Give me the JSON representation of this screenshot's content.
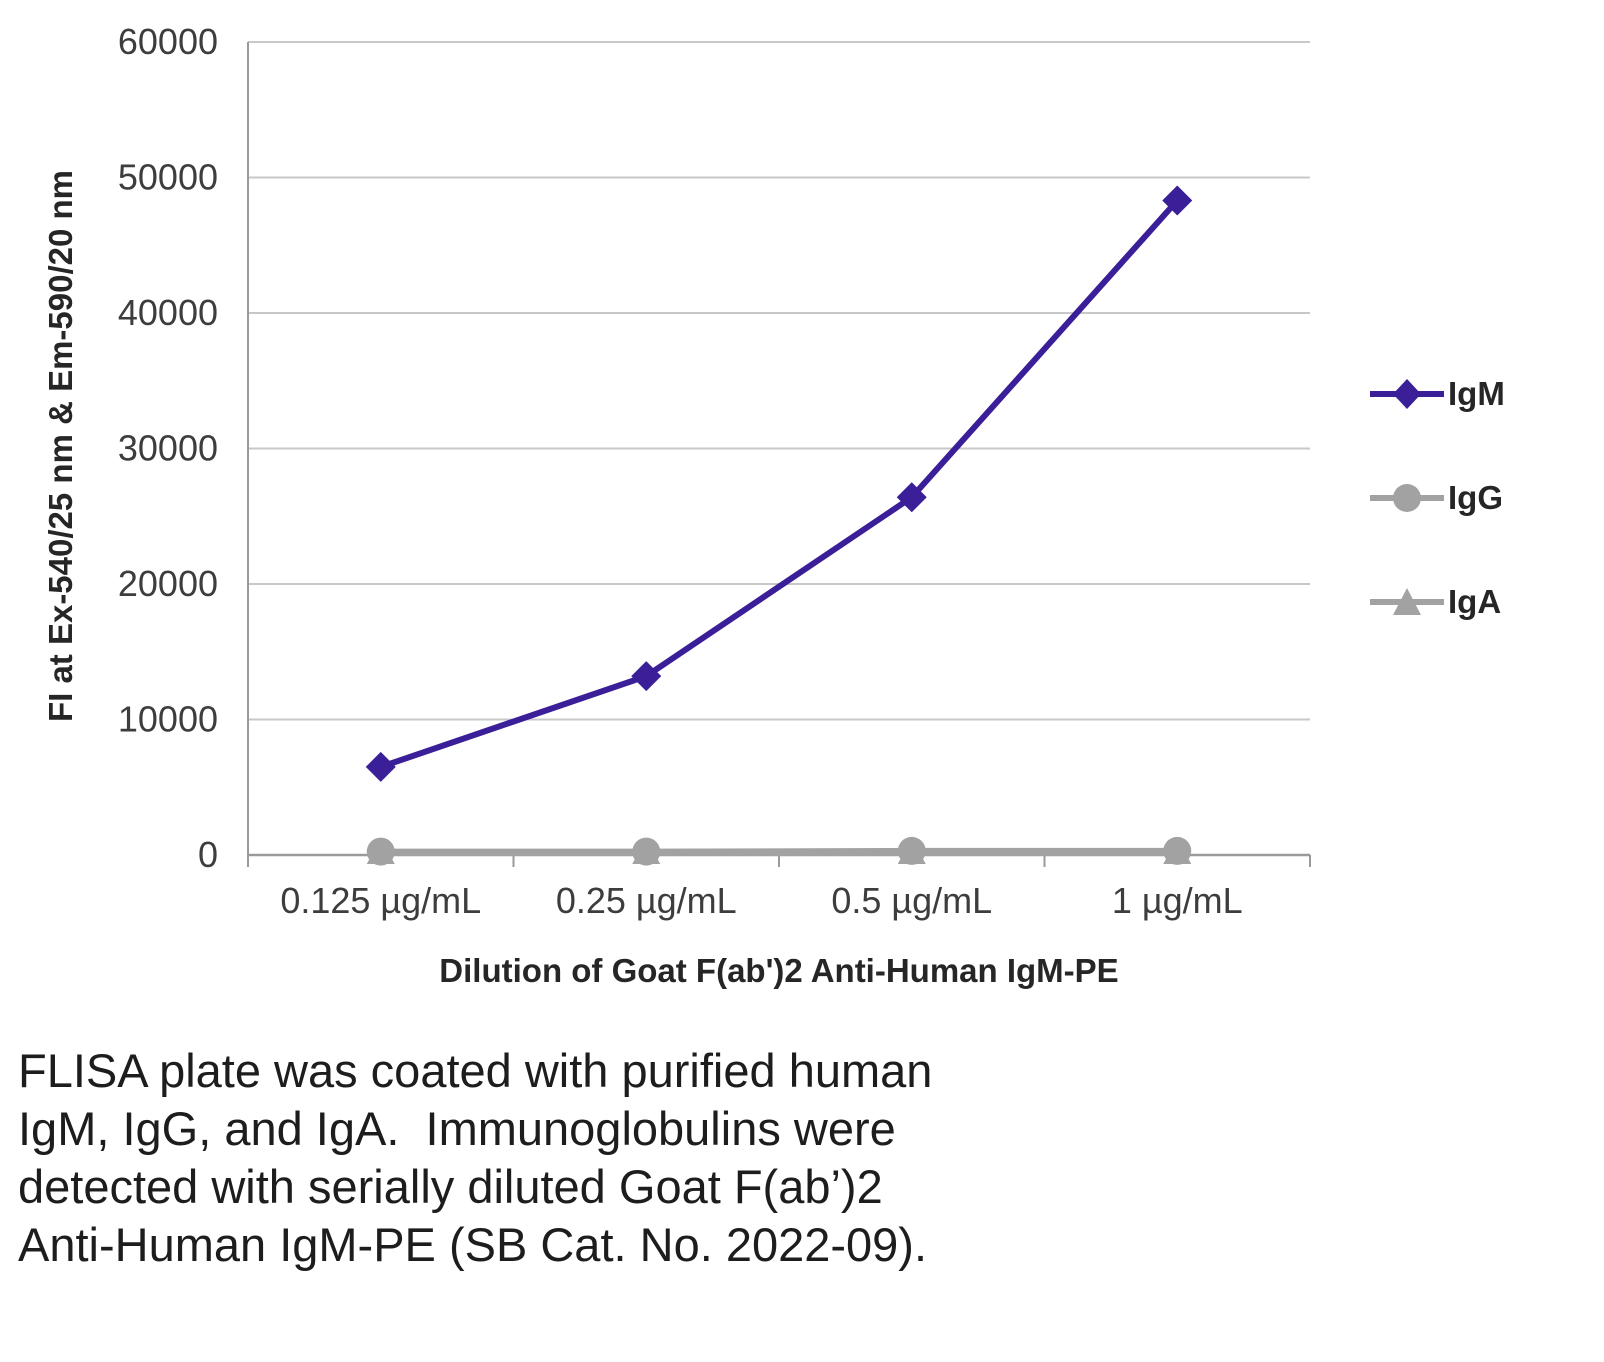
{
  "chart_data": {
    "type": "line",
    "title": "",
    "categories": [
      "0.125 µg/mL",
      "0.25 µg/mL",
      "0.5 µg/mL",
      "1 µg/mL"
    ],
    "series": [
      {
        "name": "IgM",
        "values": [
          6500,
          13200,
          26400,
          48300
        ],
        "color": "#3b1f98",
        "marker": "diamond"
      },
      {
        "name": "IgG",
        "values": [
          250,
          250,
          300,
          300
        ],
        "color": "#a2a2a2",
        "marker": "circle"
      },
      {
        "name": "IgA",
        "values": [
          150,
          150,
          150,
          150
        ],
        "color": "#a2a2a2",
        "marker": "triangle"
      }
    ],
    "xlabel": "Dilution of Goat F(ab')2 Anti-Human IgM-PE",
    "ylabel": "FI at Ex-540/25 nm & Em-590/20 nm",
    "ylim": [
      0,
      60000
    ],
    "ytick_step": 10000,
    "grid": true,
    "legend_position": "right"
  },
  "caption": {
    "lines": [
      "FLISA plate was coated with purified human",
      "IgM, IgG, and IgA.  Immunoglobulins were",
      "detected with serially diluted Goat F(ab’)2",
      "Anti-Human IgM-PE (SB Cat. No. 2022-09)."
    ]
  },
  "colors": {
    "igm_line": "#3b1f98",
    "gray_series": "#a2a2a2",
    "gridline": "#c8c8c8",
    "axis": "#9a9a9a",
    "tick_text": "#3d3d3d",
    "caption_text": "#1d1d1d"
  }
}
